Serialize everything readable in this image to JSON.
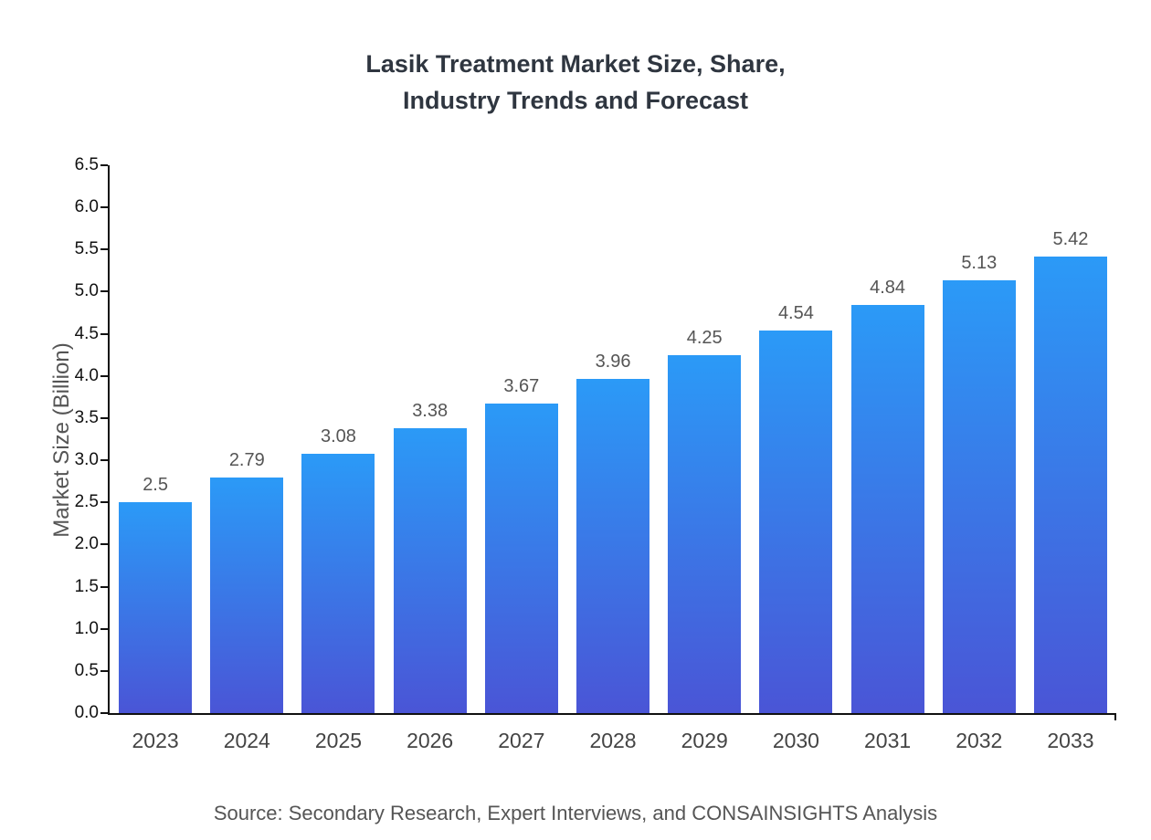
{
  "chart_data": {
    "type": "bar",
    "title": "Lasik Treatment Market Size, Share,\nIndustry Trends and Forecast",
    "categories": [
      "2023",
      "2024",
      "2025",
      "2026",
      "2027",
      "2028",
      "2029",
      "2030",
      "2031",
      "2032",
      "2033"
    ],
    "values": [
      2.5,
      2.79,
      3.08,
      3.38,
      3.67,
      3.96,
      4.25,
      4.54,
      4.84,
      5.13,
      5.42
    ],
    "value_labels": [
      "2.5",
      "2.79",
      "3.08",
      "3.38",
      "3.67",
      "3.96",
      "4.25",
      "4.54",
      "4.84",
      "5.13",
      "5.42"
    ],
    "xlabel": "",
    "ylabel": "Market Size (Billion)",
    "ylim": [
      0,
      6.5
    ],
    "ytick_step": 0.5,
    "grid": false,
    "legend": "none",
    "bar_gradient_top": "#2B9AF7",
    "bar_gradient_bottom": "#4A55D6",
    "axis_color": "#111111",
    "title_color": "#2f3640",
    "label_color": "#555555"
  },
  "footer": {
    "source": "Source: Secondary Research, Expert Interviews, and CONSAINSIGHTS Analysis"
  }
}
